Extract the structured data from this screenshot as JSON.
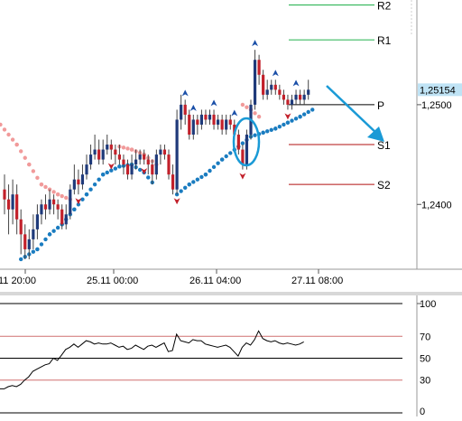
{
  "chart_data": [
    {
      "type": "candlestick",
      "title": "",
      "x_tick_labels": [
        "11 20:00",
        "25.11 00:00",
        "26.11 04:00",
        "27.11 08:00"
      ],
      "y_tick_labels": [
        "1,2500",
        "1,2400"
      ],
      "ylim": [
        1.2335,
        1.2605
      ],
      "current_price": "1,25154",
      "grid": false,
      "levels": [
        {
          "label": "R2",
          "value": 1.26,
          "color": "#22b14c"
        },
        {
          "label": "R1",
          "value": 1.2565,
          "color": "#22b14c"
        },
        {
          "label": "P",
          "value": 1.25,
          "color": "#000000"
        },
        {
          "label": "S1",
          "value": 1.246,
          "color": "#b01010"
        },
        {
          "label": "S2",
          "value": 1.242,
          "color": "#b01010"
        }
      ],
      "candles": [
        [
          1.2415,
          1.2405,
          1.243,
          1.239
        ],
        [
          1.2405,
          1.2395,
          1.242,
          1.237
        ],
        [
          1.2395,
          1.241,
          1.2425,
          1.238
        ],
        [
          1.241,
          1.2385,
          1.242,
          1.237
        ],
        [
          1.2385,
          1.237,
          1.2395,
          1.235
        ],
        [
          1.237,
          1.2355,
          1.238,
          1.2345
        ],
        [
          1.2355,
          1.2365,
          1.2375,
          1.2345
        ],
        [
          1.2365,
          1.2375,
          1.239,
          1.2355
        ],
        [
          1.2375,
          1.239,
          1.24,
          1.2365
        ],
        [
          1.239,
          1.24,
          1.2405,
          1.238
        ],
        [
          1.24,
          1.2395,
          1.241,
          1.2385
        ],
        [
          1.2395,
          1.2405,
          1.2415,
          1.239
        ],
        [
          1.2405,
          1.24,
          1.241,
          1.239
        ],
        [
          1.24,
          1.2395,
          1.2405,
          1.2385
        ],
        [
          1.2395,
          1.238,
          1.24,
          1.2375
        ],
        [
          1.238,
          1.239,
          1.24,
          1.2375
        ],
        [
          1.239,
          1.2415,
          1.242,
          1.2385
        ],
        [
          1.2415,
          1.2425,
          1.244,
          1.241
        ],
        [
          1.2425,
          1.242,
          1.2435,
          1.241
        ],
        [
          1.242,
          1.243,
          1.244,
          1.2415
        ],
        [
          1.243,
          1.244,
          1.245,
          1.2425
        ],
        [
          1.244,
          1.245,
          1.246,
          1.2435
        ],
        [
          1.245,
          1.2455,
          1.247,
          1.2445
        ],
        [
          1.2455,
          1.2445,
          1.2465,
          1.244
        ],
        [
          1.2445,
          1.2455,
          1.2465,
          1.244
        ],
        [
          1.2455,
          1.246,
          1.247,
          1.245
        ],
        [
          1.246,
          1.2455,
          1.2465,
          1.2445
        ],
        [
          1.2455,
          1.245,
          1.246,
          1.244
        ],
        [
          1.245,
          1.2445,
          1.246,
          1.244
        ],
        [
          1.2445,
          1.244,
          1.245,
          1.243
        ],
        [
          1.244,
          1.243,
          1.2445,
          1.2425
        ],
        [
          1.243,
          1.244,
          1.245,
          1.2425
        ],
        [
          1.244,
          1.2445,
          1.2455,
          1.2435
        ],
        [
          1.2445,
          1.245,
          1.2455,
          1.244
        ],
        [
          1.245,
          1.2445,
          1.2455,
          1.244
        ],
        [
          1.2445,
          1.244,
          1.245,
          1.243
        ],
        [
          1.244,
          1.243,
          1.2445,
          1.242
        ],
        [
          1.243,
          1.245,
          1.2455,
          1.2425
        ],
        [
          1.245,
          1.2455,
          1.246,
          1.244
        ],
        [
          1.2455,
          1.245,
          1.246,
          1.2445
        ],
        [
          1.245,
          1.243,
          1.2455,
          1.2425
        ],
        [
          1.243,
          1.2415,
          1.244,
          1.241
        ],
        [
          1.2415,
          1.2485,
          1.2495,
          1.241
        ],
        [
          1.2485,
          1.25,
          1.251,
          1.2475
        ],
        [
          1.25,
          1.249,
          1.2505,
          1.248
        ],
        [
          1.249,
          1.247,
          1.2495,
          1.2465
        ],
        [
          1.247,
          1.2485,
          1.249,
          1.2465
        ],
        [
          1.2485,
          1.248,
          1.249,
          1.247
        ],
        [
          1.248,
          1.249,
          1.2495,
          1.2475
        ],
        [
          1.249,
          1.2485,
          1.2495,
          1.248
        ],
        [
          1.2485,
          1.249,
          1.2495,
          1.248
        ],
        [
          1.249,
          1.248,
          1.2495,
          1.2475
        ],
        [
          1.248,
          1.2485,
          1.249,
          1.2475
        ],
        [
          1.2485,
          1.2475,
          1.249,
          1.247
        ],
        [
          1.2475,
          1.2485,
          1.249,
          1.247
        ],
        [
          1.2485,
          1.248,
          1.249,
          1.2475
        ],
        [
          1.248,
          1.247,
          1.2485,
          1.2465
        ],
        [
          1.247,
          1.2455,
          1.2475,
          1.245
        ],
        [
          1.2455,
          1.244,
          1.246,
          1.2435
        ],
        [
          1.244,
          1.247,
          1.2475,
          1.2435
        ],
        [
          1.247,
          1.25,
          1.2505,
          1.2465
        ],
        [
          1.25,
          1.2545,
          1.2555,
          1.2495
        ],
        [
          1.2545,
          1.253,
          1.255,
          1.252
        ],
        [
          1.253,
          1.251,
          1.2535,
          1.2505
        ],
        [
          1.251,
          1.2515,
          1.2525,
          1.2505
        ],
        [
          1.2515,
          1.252,
          1.2525,
          1.251
        ],
        [
          1.252,
          1.2515,
          1.2525,
          1.251
        ],
        [
          1.2515,
          1.251,
          1.252,
          1.2505
        ],
        [
          1.251,
          1.2505,
          1.2515,
          1.25
        ],
        [
          1.2505,
          1.25,
          1.251,
          1.2495
        ],
        [
          1.25,
          1.2505,
          1.251,
          1.2495
        ],
        [
          1.2505,
          1.251,
          1.2515,
          1.25
        ],
        [
          1.251,
          1.2505,
          1.2515,
          1.25
        ],
        [
          1.2505,
          1.251,
          1.2515,
          1.25
        ],
        [
          1.251,
          1.2515,
          1.2525,
          1.2505
        ]
      ],
      "supertrend": [
        {
          "color": "#f19a9a",
          "points": [
            [
              -1,
              1.248
            ],
            [
              3,
              1.246
            ],
            [
              6,
              1.244
            ],
            [
              9,
              1.242
            ],
            [
              13,
              1.241
            ],
            [
              16,
              1.2405
            ]
          ]
        },
        {
          "color": "#1a7cc0",
          "points": [
            [
              4,
              1.2345
            ],
            [
              8,
              1.2355
            ],
            [
              11,
              1.237
            ],
            [
              14,
              1.238
            ],
            [
              17,
              1.2395
            ],
            [
              20,
              1.241
            ],
            [
              24,
              1.243
            ],
            [
              28,
              1.2438
            ],
            [
              31,
              1.244
            ],
            [
              34,
              1.2432
            ],
            [
              36,
              1.2422
            ]
          ]
        },
        {
          "color": "#f19a9a",
          "points": [
            [
              28,
              1.2458
            ],
            [
              31,
              1.2455
            ],
            [
              34,
              1.245
            ],
            [
              37,
              1.244
            ]
          ]
        },
        {
          "color": "#1a7cc0",
          "points": [
            [
              42,
              1.241
            ],
            [
              45,
              1.242
            ],
            [
              49,
              1.243
            ],
            [
              53,
              1.2445
            ],
            [
              57,
              1.2458
            ],
            [
              60,
              1.2468
            ],
            [
              63,
              1.2472
            ],
            [
              66,
              1.2476
            ],
            [
              69,
              1.2482
            ],
            [
              72,
              1.2488
            ],
            [
              75,
              1.2495
            ]
          ]
        },
        {
          "color": "#f19a9a",
          "points": [
            [
              58,
              1.25
            ],
            [
              60,
              1.2495
            ],
            [
              62,
              1.2488
            ]
          ]
        }
      ],
      "fractals_up": [
        44,
        46,
        51,
        56,
        61,
        66,
        71
      ],
      "fractals_down": [
        18,
        26,
        34,
        42,
        58,
        69
      ]
    },
    {
      "type": "line",
      "title": "",
      "ylim": [
        0,
        100
      ],
      "y_tick_labels": [
        "100",
        "70",
        "50",
        "30",
        "0"
      ],
      "levels": [
        {
          "value": 100,
          "color": "#000000"
        },
        {
          "value": 70,
          "color": "#d07070"
        },
        {
          "value": 50,
          "color": "#000000"
        },
        {
          "value": 30,
          "color": "#d07070"
        },
        {
          "value": 0,
          "color": "#000000"
        }
      ],
      "values": [
        22,
        22,
        24,
        25,
        24,
        26,
        30,
        33,
        38,
        40,
        42,
        44,
        45,
        50,
        48,
        53,
        58,
        60,
        63,
        60,
        63,
        66,
        65,
        63,
        64,
        63,
        63,
        64,
        62,
        60,
        61,
        58,
        59,
        62,
        60,
        58,
        61,
        62,
        60,
        62,
        64,
        56,
        57,
        72,
        66,
        65,
        64,
        67,
        66,
        66,
        63,
        62,
        61,
        60,
        61,
        62,
        60,
        56,
        52,
        60,
        64,
        62,
        67,
        75,
        68,
        66,
        65,
        66,
        64,
        63,
        64,
        63,
        62,
        63,
        65
      ]
    }
  ]
}
